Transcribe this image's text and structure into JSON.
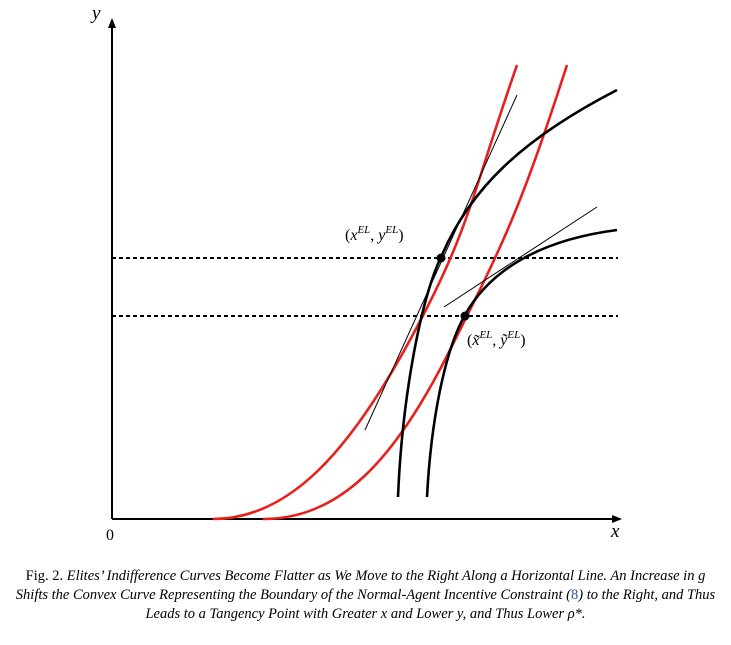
{
  "axes": {
    "x_label": "x",
    "y_label": "y",
    "origin_label": "0"
  },
  "points": {
    "el": {
      "label_open": "(",
      "x_var": "x",
      "x_sup": "EL",
      "sep": ", ",
      "y_var": "y",
      "y_sup": "EL",
      "label_close": ")"
    },
    "el_tilde": {
      "label_open": "(",
      "x_var": "x̃",
      "x_sup": "EL",
      "sep": ", ",
      "y_var": "ỹ",
      "y_sup": "EL",
      "label_close": ")"
    }
  },
  "colors": {
    "red_curve": "#e8201c",
    "black_curve": "#000000",
    "link": "#2a4fb8"
  },
  "caption": {
    "prefix": "Fig. 2.",
    "text_1": "Elites’ Indifference Curves Become Flatter as We Move to the Right Along a Horizontal Line. An Increase in g Shifts the Convex Curve Representing the Boundary of the Normal-Agent Incentive Constraint (",
    "ref": "8",
    "text_2": ") to the Right, and Thus Leads to a Tangency Point with Greater x and Lower y, and Thus Lower ρ*."
  }
}
